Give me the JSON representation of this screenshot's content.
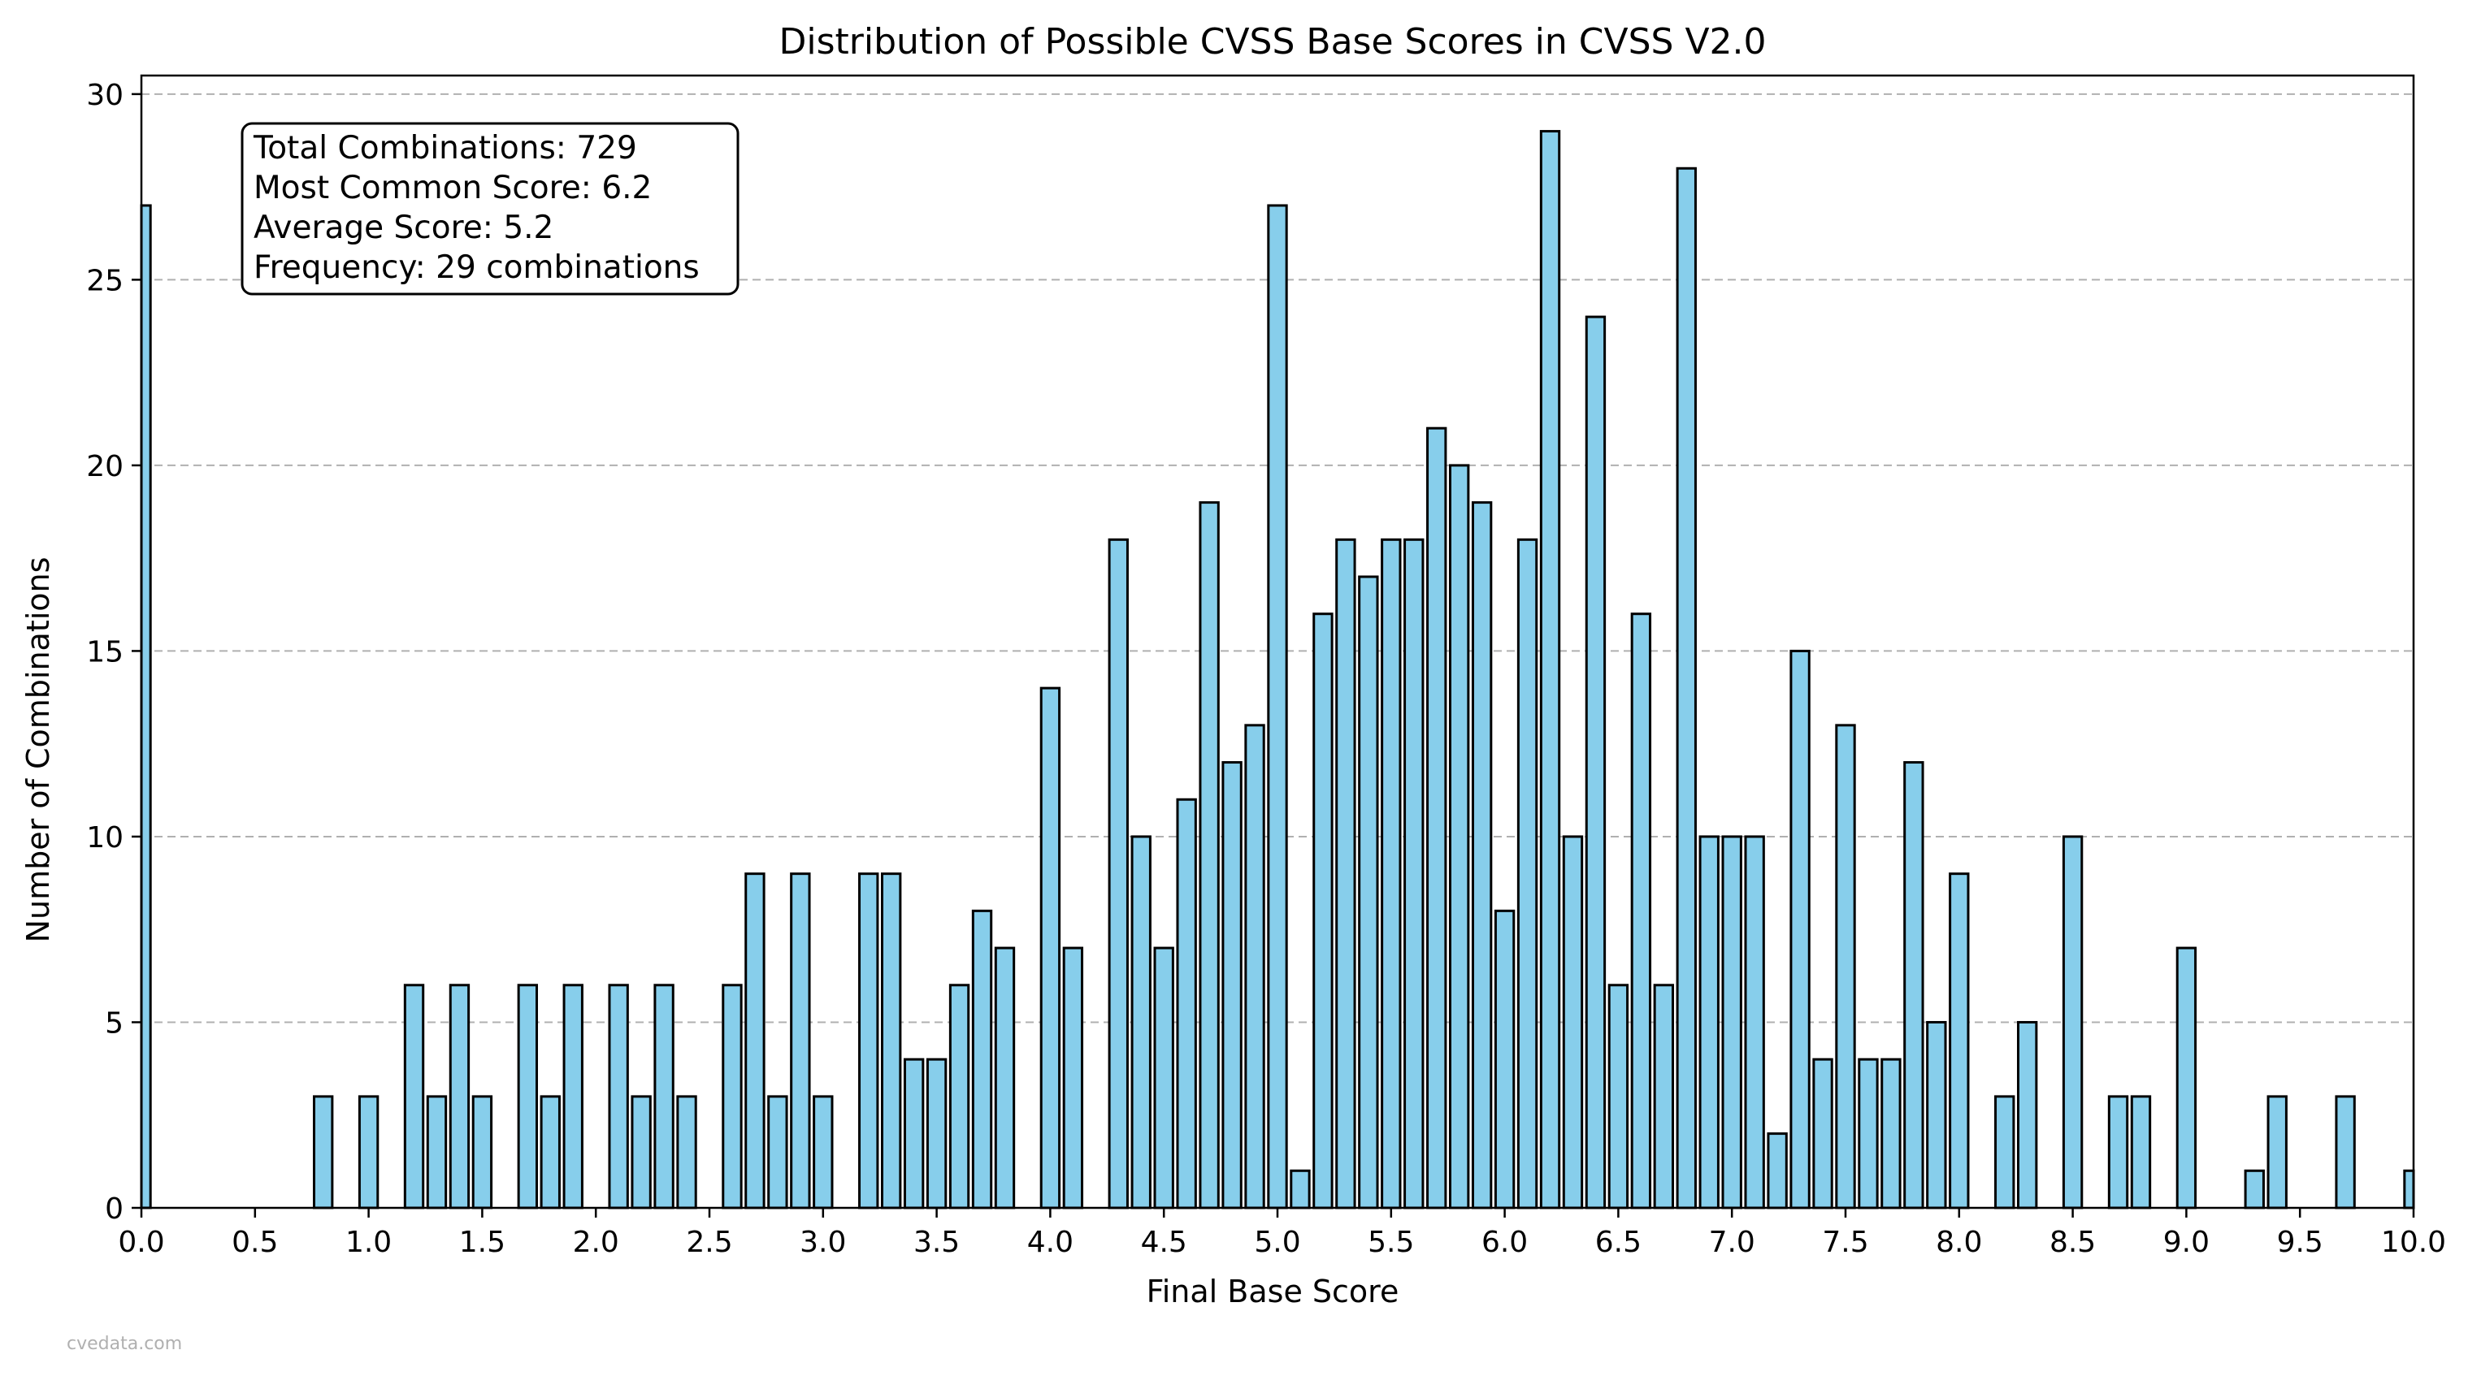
{
  "chart_data": {
    "type": "bar",
    "title": "Distribution of Possible CVSS Base Scores in CVSS V2.0",
    "xlabel": "Final Base Score",
    "ylabel": "Number of Combinations",
    "xlim": [
      0,
      10
    ],
    "ylim": [
      0,
      30.5
    ],
    "x_ticks": [
      "0.0",
      "0.5",
      "1.0",
      "1.5",
      "2.0",
      "2.5",
      "3.0",
      "3.5",
      "4.0",
      "4.5",
      "5.0",
      "5.5",
      "6.0",
      "6.5",
      "7.0",
      "7.5",
      "8.0",
      "8.5",
      "9.0",
      "9.5",
      "10.0"
    ],
    "y_ticks": [
      "0",
      "5",
      "10",
      "15",
      "20",
      "25",
      "30"
    ],
    "grid": "horizontal dashed",
    "bar_color": "#87ceeb",
    "edge_color": "#000000",
    "x": [
      0.0,
      0.8,
      1.0,
      1.2,
      1.3,
      1.4,
      1.5,
      1.7,
      1.8,
      1.9,
      2.1,
      2.2,
      2.3,
      2.4,
      2.6,
      2.7,
      2.8,
      2.9,
      3.0,
      3.2,
      3.3,
      3.4,
      3.5,
      3.6,
      3.7,
      3.8,
      4.0,
      4.1,
      4.3,
      4.4,
      4.5,
      4.6,
      4.7,
      4.8,
      4.9,
      5.0,
      5.1,
      5.2,
      5.3,
      5.4,
      5.5,
      5.6,
      5.7,
      5.8,
      5.9,
      6.0,
      6.1,
      6.2,
      6.3,
      6.4,
      6.5,
      6.6,
      6.7,
      6.8,
      6.9,
      7.0,
      7.1,
      7.2,
      7.3,
      7.4,
      7.5,
      7.6,
      7.7,
      7.8,
      7.9,
      8.0,
      8.2,
      8.3,
      8.5,
      8.7,
      8.8,
      9.0,
      9.3,
      9.4,
      9.7,
      10.0
    ],
    "values": [
      27,
      3,
      3,
      6,
      3,
      6,
      3,
      6,
      3,
      6,
      6,
      3,
      6,
      3,
      6,
      9,
      3,
      9,
      3,
      9,
      9,
      4,
      4,
      6,
      8,
      7,
      14,
      7,
      18,
      10,
      7,
      11,
      19,
      12,
      13,
      27,
      1,
      16,
      18,
      17,
      18,
      18,
      21,
      20,
      19,
      8,
      18,
      29,
      10,
      24,
      6,
      16,
      6,
      28,
      10,
      10,
      10,
      2,
      15,
      4,
      13,
      4,
      4,
      12,
      5,
      9,
      3,
      5,
      10,
      3,
      3,
      7,
      1,
      3,
      3,
      1
    ],
    "annotation": [
      "Total Combinations: 729",
      "Most Common Score: 6.2",
      "Average Score: 5.2",
      "Frequency: 29 combinations"
    ],
    "watermark": "cvedata.com"
  }
}
